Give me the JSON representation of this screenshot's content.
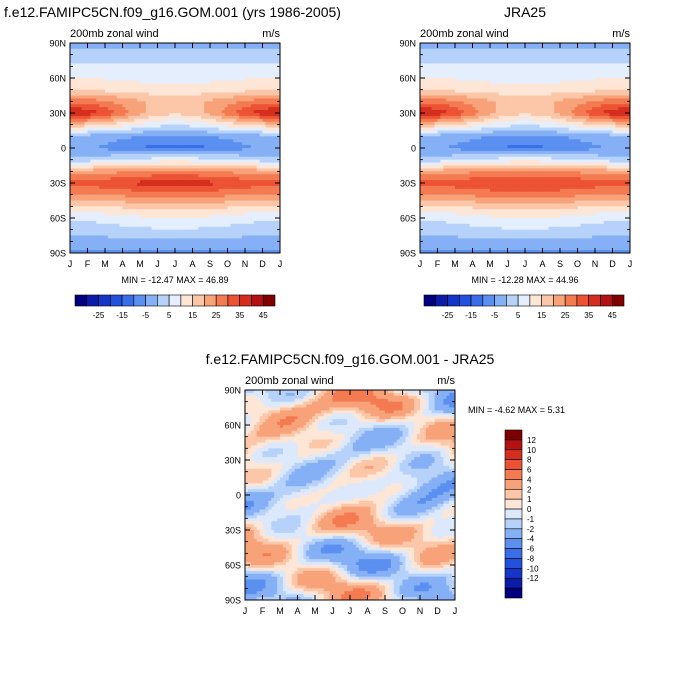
{
  "chart_data": [
    {
      "type": "heatmap",
      "title": "f.e12.FAMIPC5CN.f09_g16.GOM.001 (yrs 1986-2005)",
      "left_label": "200mb zonal wind",
      "right_label": "m/s",
      "x_ticks": [
        "J",
        "F",
        "M",
        "A",
        "M",
        "J",
        "J",
        "A",
        "S",
        "O",
        "N",
        "D",
        "J"
      ],
      "y_ticks": [
        "90N",
        "60N",
        "30N",
        "0",
        "30S",
        "60S",
        "90S"
      ],
      "ylim": [
        -90,
        90
      ],
      "minmax_text": "MIN = -12.47 MAX =  46.89",
      "min": -12.47,
      "max": 46.89,
      "colorbar": {
        "orientation": "horizontal",
        "levels": [
          -30,
          -25,
          -20,
          -15,
          -10,
          -5,
          0,
          5,
          10,
          15,
          20,
          25,
          30,
          35,
          40,
          45
        ],
        "labels": [
          "-25",
          "-15",
          "-5",
          "5",
          "15",
          "25",
          "35",
          "45"
        ]
      },
      "approx_zonal_structure": {
        "latitudes": [
          -90,
          -75,
          -60,
          -50,
          -40,
          -30,
          -20,
          -10,
          0,
          10,
          20,
          30,
          40,
          50,
          60,
          75,
          90
        ],
        "jan": [
          -6,
          0,
          6,
          14,
          24,
          32,
          22,
          2,
          -4,
          -2,
          18,
          40,
          28,
          14,
          10,
          4,
          -2
        ],
        "jul": [
          -6,
          2,
          10,
          18,
          28,
          38,
          26,
          8,
          -12,
          -6,
          6,
          16,
          18,
          12,
          8,
          4,
          -2
        ]
      }
    },
    {
      "type": "heatmap",
      "title": "JRA25",
      "left_label": "200mb zonal wind",
      "right_label": "m/s",
      "x_ticks": [
        "J",
        "F",
        "M",
        "A",
        "M",
        "J",
        "J",
        "A",
        "S",
        "O",
        "N",
        "D",
        "J"
      ],
      "y_ticks": [
        "90N",
        "60N",
        "30N",
        "0",
        "30S",
        "60S",
        "90S"
      ],
      "ylim": [
        -90,
        90
      ],
      "minmax_text": "MIN = -12.28 MAX =  44.96",
      "min": -12.28,
      "max": 44.96,
      "colorbar": {
        "orientation": "horizontal",
        "levels": [
          -30,
          -25,
          -20,
          -15,
          -10,
          -5,
          0,
          5,
          10,
          15,
          20,
          25,
          30,
          35,
          40,
          45
        ],
        "labels": [
          "-25",
          "-15",
          "-5",
          "5",
          "15",
          "25",
          "35",
          "45"
        ]
      },
      "approx_zonal_structure": {
        "latitudes": [
          -90,
          -75,
          -60,
          -50,
          -40,
          -30,
          -20,
          -10,
          0,
          10,
          20,
          30,
          40,
          50,
          60,
          75,
          90
        ],
        "jan": [
          -6,
          0,
          6,
          14,
          24,
          32,
          22,
          2,
          -4,
          -2,
          18,
          40,
          28,
          14,
          10,
          4,
          -2
        ],
        "jul": [
          -6,
          2,
          10,
          18,
          28,
          36,
          26,
          8,
          -11,
          -6,
          6,
          16,
          18,
          12,
          8,
          4,
          -2
        ]
      }
    },
    {
      "type": "heatmap",
      "title": "f.e12.FAMIPC5CN.f09_g16.GOM.001 - JRA25",
      "left_label": "200mb zonal wind",
      "right_label": "m/s",
      "x_ticks": [
        "J",
        "F",
        "M",
        "A",
        "M",
        "J",
        "J",
        "A",
        "S",
        "O",
        "N",
        "D",
        "J"
      ],
      "y_ticks": [
        "90N",
        "60N",
        "30N",
        "0",
        "30S",
        "60S",
        "90S"
      ],
      "ylim": [
        -90,
        90
      ],
      "minmax_text": "MIN =  -4.62 MAX =   5.31",
      "min": -4.62,
      "max": 5.31,
      "colorbar": {
        "orientation": "vertical",
        "levels": [
          -14,
          -12,
          -10,
          -8,
          -6,
          -4,
          -2,
          -1,
          0,
          1,
          2,
          4,
          6,
          8,
          10,
          12,
          14
        ],
        "labels": [
          "12",
          "10",
          "8",
          "6",
          "4",
          "2",
          "1",
          "0",
          "-1",
          "-2",
          "-4",
          "-6",
          "-8",
          "-10",
          "-12"
        ]
      }
    }
  ],
  "palettes": {
    "abs": [
      "#00007f",
      "#0b1ca8",
      "#1436c8",
      "#2251de",
      "#3a6ee8",
      "#5b8ff0",
      "#86b0f6",
      "#b6d2fa",
      "#e4eefc",
      "#fde6d6",
      "#fbc7a8",
      "#f8a27a",
      "#f47a52",
      "#ec5234",
      "#d42e1e",
      "#b21212",
      "#7f0000"
    ],
    "diff": [
      "#00007f",
      "#0b1ca8",
      "#1436c8",
      "#2251de",
      "#3a6ee8",
      "#5b8ff0",
      "#86b0f6",
      "#b6d2fa",
      "#dce8fb",
      "#fde6d6",
      "#fbc7a8",
      "#f8a27a",
      "#f47a52",
      "#ec5234",
      "#d42e1e",
      "#b21212",
      "#7f0000"
    ]
  }
}
